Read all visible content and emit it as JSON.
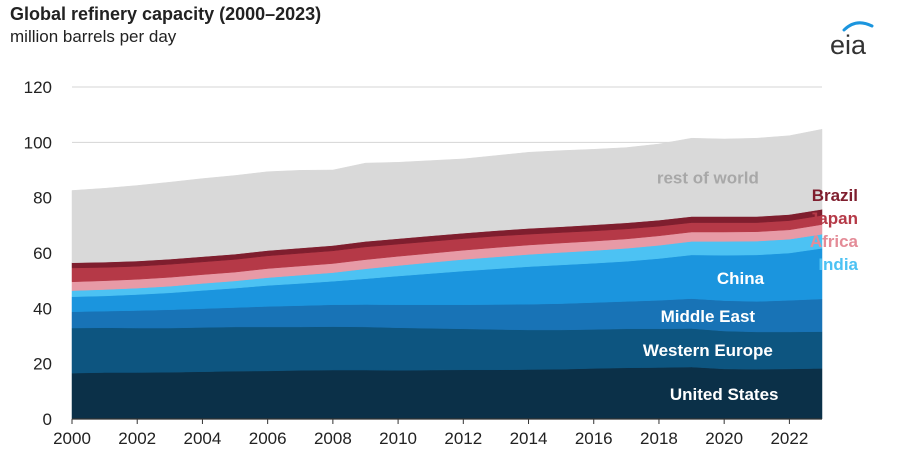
{
  "header": {
    "title": "Global refinery capacity (2000–2023)",
    "subtitle": "million barrels per day",
    "logo_text": "eia"
  },
  "chart_data": {
    "type": "area",
    "stacked": true,
    "title": "Global refinery capacity (2000–2023)",
    "ylabel": "million barrels per day",
    "xlim": [
      2000,
      2023
    ],
    "ylim": [
      0,
      120
    ],
    "x_ticks": [
      "2000",
      "2002",
      "2004",
      "2006",
      "2008",
      "2010",
      "2012",
      "2014",
      "2016",
      "2018",
      "2020",
      "2022"
    ],
    "y_ticks": [
      "0",
      "20",
      "40",
      "60",
      "80",
      "100",
      "120"
    ],
    "grid": "horizontal",
    "legend": "inline labels at right",
    "x": [
      2000,
      2001,
      2002,
      2003,
      2004,
      2005,
      2006,
      2007,
      2008,
      2009,
      2010,
      2011,
      2012,
      2013,
      2014,
      2015,
      2016,
      2017,
      2018,
      2019,
      2020,
      2021,
      2022,
      2023
    ],
    "series": [
      {
        "name": "United States",
        "color": "#0b3048",
        "label_color": "#ffffff",
        "values": [
          16.6,
          16.8,
          16.8,
          16.9,
          17.1,
          17.3,
          17.4,
          17.6,
          17.7,
          17.7,
          17.6,
          17.7,
          17.8,
          17.8,
          17.9,
          18.0,
          18.3,
          18.5,
          18.6,
          18.8,
          18.1,
          18.0,
          18.1,
          18.3
        ]
      },
      {
        "name": "Western Europe",
        "color": "#0d5580",
        "label_color": "#ffffff",
        "values": [
          16.3,
          16.2,
          16.1,
          16.0,
          16.0,
          16.0,
          15.9,
          15.7,
          15.7,
          15.6,
          15.4,
          15.1,
          14.8,
          14.6,
          14.3,
          14.2,
          14.1,
          14.1,
          14.0,
          13.9,
          13.7,
          13.5,
          13.4,
          13.3
        ]
      },
      {
        "name": "Middle East",
        "color": "#1873b6",
        "label_color": "#ffffff",
        "values": [
          5.9,
          6.0,
          6.3,
          6.6,
          6.8,
          7.0,
          7.4,
          7.7,
          7.9,
          8.1,
          8.3,
          8.5,
          8.7,
          9.0,
          9.3,
          9.5,
          9.7,
          9.9,
          10.3,
          10.8,
          11.0,
          11.0,
          11.4,
          11.8
        ]
      },
      {
        "name": "China",
        "color": "#1b95de",
        "label_color": "#ffffff",
        "values": [
          5.4,
          5.5,
          5.8,
          6.1,
          6.6,
          7.0,
          7.6,
          8.0,
          8.5,
          9.3,
          10.4,
          11.3,
          12.2,
          12.9,
          13.6,
          14.0,
          14.2,
          14.5,
          15.1,
          15.8,
          16.4,
          16.8,
          17.1,
          18.3
        ]
      },
      {
        "name": "India",
        "color": "#4cc2f3",
        "label_color": "#4cc2f3",
        "values": [
          2.2,
          2.3,
          2.3,
          2.4,
          2.5,
          2.6,
          2.8,
          3.0,
          3.1,
          3.6,
          3.8,
          4.0,
          4.2,
          4.3,
          4.4,
          4.5,
          4.6,
          4.7,
          4.8,
          4.9,
          5.0,
          5.0,
          5.0,
          5.1
        ]
      },
      {
        "name": "Africa",
        "color": "#e79aa6",
        "label_color": "#e48b97",
        "values": [
          3.2,
          3.2,
          3.2,
          3.2,
          3.2,
          3.2,
          3.3,
          3.3,
          3.3,
          3.3,
          3.3,
          3.3,
          3.3,
          3.4,
          3.4,
          3.4,
          3.4,
          3.4,
          3.4,
          3.4,
          3.4,
          3.4,
          3.4,
          3.5
        ]
      },
      {
        "name": "Japan",
        "color": "#b53947",
        "label_color": "#b53947",
        "values": [
          5.0,
          4.8,
          4.7,
          4.7,
          4.6,
          4.6,
          4.6,
          4.6,
          4.6,
          4.6,
          4.4,
          4.3,
          4.2,
          4.1,
          3.9,
          3.8,
          3.7,
          3.6,
          3.5,
          3.4,
          3.4,
          3.3,
          3.3,
          3.3
        ]
      },
      {
        "name": "Brazil",
        "color": "#7f1e2e",
        "label_color": "#7f1e2e",
        "values": [
          1.9,
          1.9,
          1.9,
          1.9,
          1.9,
          1.9,
          1.9,
          1.9,
          1.9,
          2.0,
          2.0,
          2.0,
          2.0,
          2.0,
          2.1,
          2.1,
          2.2,
          2.2,
          2.2,
          2.2,
          2.2,
          2.2,
          2.2,
          2.2
        ]
      },
      {
        "name": "rest of world",
        "color": "#d9d9d9",
        "label_color": "#a8a8a8",
        "values": [
          26.1,
          26.7,
          27.3,
          27.8,
          28.2,
          28.4,
          28.5,
          28.1,
          27.3,
          28.3,
          27.6,
          27.2,
          26.8,
          27.1,
          27.5,
          27.5,
          27.3,
          27.2,
          27.5,
          28.3,
          28.0,
          28.3,
          28.5,
          28.9
        ]
      }
    ]
  }
}
